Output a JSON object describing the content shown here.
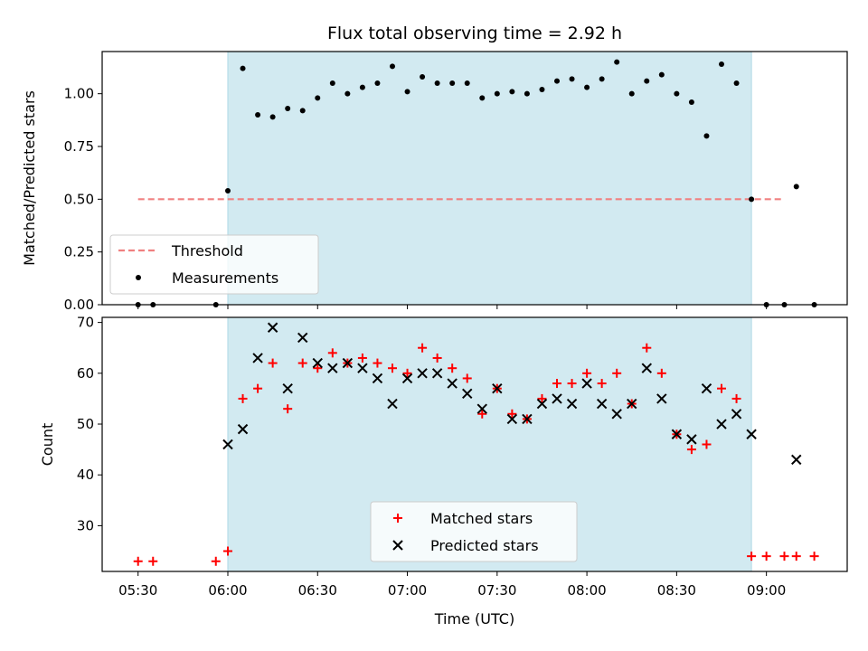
{
  "title": "Flux total observing time = 2.92 h",
  "xlabel": "Time (UTC)",
  "x_ticks": [
    "05:30",
    "06:00",
    "06:30",
    "07:00",
    "07:30",
    "08:00",
    "08:30",
    "09:00"
  ],
  "x_tick_values": [
    330,
    360,
    390,
    420,
    450,
    480,
    510,
    540
  ],
  "colors": {
    "shade": "#add8e6",
    "threshold": "#f08080",
    "matched": "#ff0000",
    "predicted": "#000000",
    "measurements": "#000000"
  },
  "chart_data": [
    {
      "type": "scatter",
      "ylabel": "Matched/Predicted stars",
      "xlim": [
        318,
        567
      ],
      "ylim": [
        0,
        1.2
      ],
      "y_ticks": [
        "0.00",
        "0.25",
        "0.50",
        "0.75",
        "1.00"
      ],
      "y_tick_values": [
        0,
        0.25,
        0.5,
        0.75,
        1.0
      ],
      "shaded_span": [
        360,
        535
      ],
      "legend": {
        "placement": "lower-left",
        "entries": [
          "Threshold",
          "Measurements"
        ]
      },
      "threshold": {
        "name": "Threshold",
        "x": [
          330,
          546
        ],
        "y": 0.5
      },
      "series": [
        {
          "name": "Measurements",
          "x": [
            330,
            335,
            356,
            360,
            365,
            370,
            375,
            380,
            385,
            390,
            395,
            400,
            405,
            410,
            415,
            420,
            425,
            430,
            435,
            440,
            445,
            450,
            455,
            460,
            465,
            470,
            475,
            480,
            485,
            490,
            495,
            500,
            505,
            510,
            515,
            520,
            525,
            530,
            535,
            540,
            546,
            550,
            556
          ],
          "y": [
            0,
            0,
            0,
            0.54,
            1.12,
            0.9,
            0.89,
            0.93,
            0.92,
            0.98,
            1.05,
            1.0,
            1.03,
            1.05,
            1.13,
            1.01,
            1.08,
            1.05,
            1.05,
            1.05,
            0.98,
            1.0,
            1.01,
            1.0,
            1.02,
            1.06,
            1.07,
            1.03,
            1.07,
            1.15,
            1.0,
            1.06,
            1.09,
            1.0,
            0.96,
            0.8,
            1.14,
            1.05,
            0.5,
            0,
            0,
            0.56,
            0
          ]
        }
      ]
    },
    {
      "type": "scatter",
      "ylabel": "Count",
      "xlim": [
        318,
        567
      ],
      "ylim": [
        21,
        71
      ],
      "y_ticks": [
        "30",
        "40",
        "50",
        "60",
        "70"
      ],
      "y_tick_values": [
        30,
        40,
        50,
        60,
        70
      ],
      "shaded_span": [
        360,
        535
      ],
      "legend": {
        "placement": "lower-center",
        "entries": [
          "Matched stars",
          "Predicted stars"
        ]
      },
      "series": [
        {
          "name": "Matched stars",
          "marker": "+",
          "x": [
            330,
            335,
            356,
            360,
            365,
            370,
            375,
            380,
            385,
            390,
            395,
            400,
            405,
            410,
            415,
            420,
            425,
            430,
            435,
            440,
            445,
            450,
            455,
            460,
            465,
            470,
            475,
            480,
            485,
            490,
            495,
            500,
            505,
            510,
            515,
            520,
            525,
            530,
            535,
            540,
            546,
            550,
            556
          ],
          "y": [
            23,
            23,
            23,
            25,
            55,
            57,
            62,
            53,
            62,
            61,
            64,
            62,
            63,
            62,
            61,
            60,
            65,
            63,
            61,
            59,
            52,
            57,
            52,
            51,
            55,
            58,
            58,
            60,
            58,
            60,
            54,
            65,
            60,
            48,
            45,
            46,
            57,
            55,
            24,
            24,
            24,
            24,
            24
          ]
        },
        {
          "name": "Predicted stars",
          "marker": "x",
          "x": [
            360,
            365,
            370,
            375,
            380,
            385,
            390,
            395,
            400,
            405,
            410,
            415,
            420,
            425,
            430,
            435,
            440,
            445,
            450,
            455,
            460,
            465,
            470,
            475,
            480,
            485,
            490,
            495,
            500,
            505,
            510,
            515,
            520,
            525,
            530,
            535,
            550
          ],
          "y": [
            46,
            49,
            63,
            69,
            57,
            67,
            62,
            61,
            62,
            61,
            59,
            54,
            59,
            60,
            60,
            58,
            56,
            53,
            57,
            51,
            51,
            54,
            55,
            54,
            58,
            54,
            52,
            54,
            61,
            55,
            48,
            47,
            57,
            50,
            52,
            48,
            43
          ]
        }
      ]
    }
  ]
}
